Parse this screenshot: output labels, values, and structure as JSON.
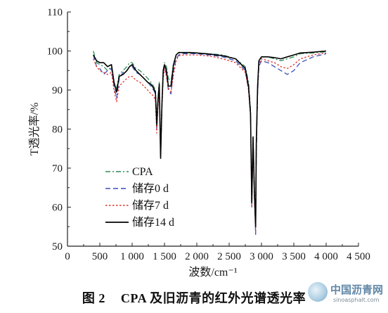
{
  "chart_data": {
    "type": "line",
    "xlabel": "波数/cm⁻¹",
    "ylabel": "T透光率/%",
    "xlim": [
      0,
      4500
    ],
    "ylim": [
      50,
      110
    ],
    "xticks": [
      0,
      500,
      1000,
      1500,
      2000,
      2500,
      3000,
      3500,
      4000,
      4500
    ],
    "xtick_labels": [
      "0",
      "500",
      "1 000",
      "1 500",
      "2 000",
      "2 500",
      "3 000",
      "3 500",
      "4 000",
      "4 500"
    ],
    "yticks": [
      50,
      60,
      70,
      80,
      90,
      100,
      110
    ],
    "ytick_labels": [
      "50",
      "60",
      "70",
      "80",
      "90",
      "100",
      "110"
    ],
    "grid": false,
    "legend_position": "lower-left",
    "series": [
      {
        "name": "CPA",
        "color": "#2e8b57",
        "dash": "dashdot",
        "x": [
          400,
          450,
          500,
          560,
          620,
          680,
          720,
          760,
          800,
          860,
          920,
          960,
          1000,
          1060,
          1120,
          1180,
          1240,
          1290,
          1330,
          1360,
          1380,
          1400,
          1420,
          1440,
          1460,
          1480,
          1500,
          1530,
          1560,
          1600,
          1640,
          1680,
          1720,
          1800,
          1900,
          2000,
          2200,
          2400,
          2600,
          2750,
          2800,
          2830,
          2850,
          2870,
          2890,
          2910,
          2920,
          2940,
          2960,
          3000,
          3100,
          3200,
          3300,
          3400,
          3500,
          3600,
          3800,
          4000
        ],
        "y": [
          100,
          97,
          96.5,
          96,
          95,
          96,
          91.5,
          90.5,
          94,
          95,
          96,
          97,
          97,
          95.5,
          95,
          94,
          93,
          92,
          91,
          90,
          82,
          88,
          92,
          75,
          86,
          95,
          97,
          96,
          93,
          92,
          97,
          99,
          99.5,
          99.5,
          99.5,
          99.5,
          99.3,
          99,
          98,
          96,
          92,
          85,
          62,
          78,
          65,
          54,
          75,
          90,
          97,
          98.5,
          98.5,
          98,
          97.5,
          98,
          98.5,
          99.3,
          99.5,
          99.8
        ]
      },
      {
        "name": "储存0 d",
        "color": "#3b4fb8",
        "dash": "dash",
        "x": [
          400,
          450,
          500,
          560,
          620,
          680,
          720,
          760,
          800,
          860,
          920,
          960,
          1000,
          1060,
          1120,
          1180,
          1240,
          1290,
          1330,
          1360,
          1380,
          1400,
          1420,
          1440,
          1460,
          1480,
          1500,
          1530,
          1560,
          1600,
          1640,
          1680,
          1720,
          1800,
          1900,
          2000,
          2200,
          2400,
          2600,
          2750,
          2800,
          2830,
          2850,
          2870,
          2890,
          2910,
          2920,
          2940,
          2960,
          3000,
          3100,
          3200,
          3300,
          3400,
          3500,
          3600,
          3800,
          4000
        ],
        "y": [
          99,
          96,
          95.5,
          94,
          95,
          95.5,
          91,
          88,
          93,
          94.5,
          95,
          96,
          96,
          94.5,
          94,
          93,
          92,
          91,
          90,
          89,
          80,
          87,
          91,
          73,
          85,
          94,
          96,
          94,
          90,
          89,
          95,
          98,
          99,
          99.3,
          99.3,
          99.3,
          99,
          98.5,
          97.5,
          95,
          90,
          84,
          60,
          77,
          63,
          53,
          73,
          89,
          96,
          97.5,
          97,
          96,
          95,
          94,
          95,
          97,
          98.5,
          99.3
        ]
      },
      {
        "name": "储存7 d",
        "color": "#e0302b",
        "dash": "dot",
        "x": [
          400,
          450,
          500,
          560,
          620,
          680,
          720,
          760,
          800,
          860,
          920,
          960,
          1000,
          1060,
          1120,
          1180,
          1240,
          1290,
          1330,
          1360,
          1380,
          1400,
          1420,
          1440,
          1460,
          1480,
          1500,
          1530,
          1560,
          1600,
          1640,
          1680,
          1720,
          1800,
          1900,
          2000,
          2200,
          2400,
          2600,
          2750,
          2800,
          2830,
          2850,
          2870,
          2890,
          2910,
          2920,
          2940,
          2960,
          3000,
          3100,
          3200,
          3300,
          3400,
          3500,
          3600,
          3800,
          4000
        ],
        "y": [
          98,
          96,
          95,
          94.5,
          94,
          94.5,
          90,
          87,
          91,
          92,
          93,
          93.5,
          93.5,
          92.5,
          92,
          91,
          90,
          89,
          88.5,
          87.5,
          79,
          86,
          90,
          73,
          85,
          93,
          95.5,
          93.5,
          90.5,
          89.5,
          94,
          97.5,
          98.8,
          99,
          99,
          99,
          98.7,
          98,
          97,
          94.5,
          90,
          83,
          60,
          77,
          63,
          54,
          74,
          90,
          96.5,
          98,
          97.5,
          97,
          96,
          95.5,
          96.5,
          98,
          99,
          99.5
        ]
      },
      {
        "name": "储存14 d",
        "color": "#000000",
        "dash": "solid",
        "x": [
          400,
          450,
          500,
          560,
          620,
          680,
          720,
          760,
          800,
          860,
          920,
          960,
          1000,
          1060,
          1120,
          1180,
          1240,
          1290,
          1330,
          1360,
          1380,
          1400,
          1420,
          1440,
          1460,
          1480,
          1500,
          1530,
          1560,
          1600,
          1640,
          1680,
          1720,
          1800,
          1900,
          2000,
          2200,
          2400,
          2600,
          2750,
          2800,
          2830,
          2850,
          2870,
          2890,
          2910,
          2920,
          2940,
          2960,
          3000,
          3100,
          3200,
          3300,
          3400,
          3500,
          3600,
          3800,
          4000
        ],
        "y": [
          99,
          97.5,
          97,
          97,
          96,
          96.5,
          92,
          89.5,
          93.5,
          94,
          95,
          96,
          96.5,
          95,
          94,
          93,
          92,
          91.5,
          90.5,
          89.5,
          81,
          87.5,
          91.5,
          72.5,
          86,
          95,
          96.5,
          95,
          91,
          91,
          96.5,
          99,
          99.6,
          99.6,
          99.6,
          99.5,
          99.2,
          98.8,
          98,
          95.5,
          91,
          84,
          61,
          78,
          64,
          55,
          76,
          91,
          97.5,
          98.5,
          98.5,
          98.3,
          98,
          98.5,
          99,
          99.5,
          99.7,
          100
        ]
      }
    ]
  },
  "caption": {
    "figure_number": "图 2",
    "text": "CPA 及旧沥青的红外光谱透光率"
  },
  "watermark": {
    "name": "中国沥青网",
    "url": "sinoasphalt.com"
  }
}
